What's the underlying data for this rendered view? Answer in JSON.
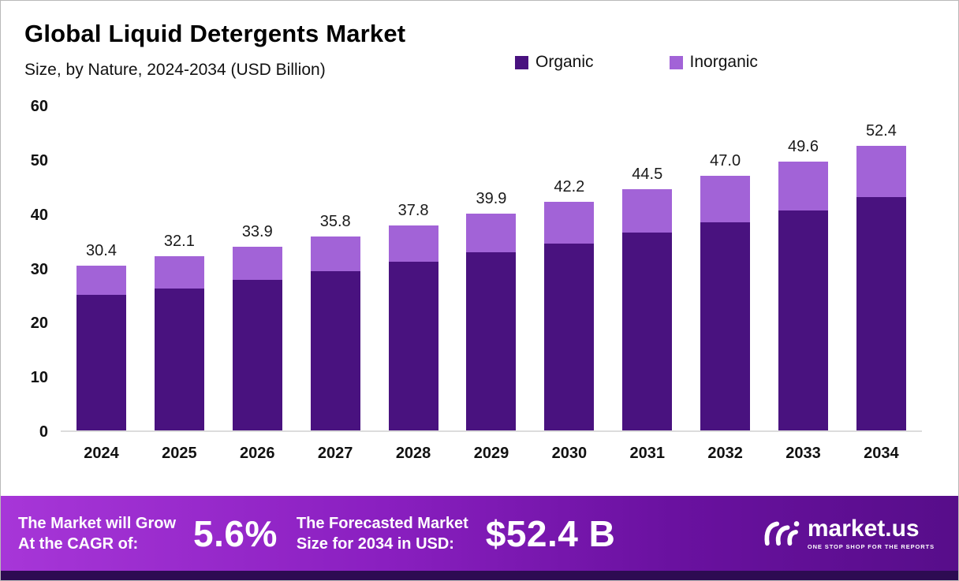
{
  "header": {
    "title": "Global Liquid Detergents Market",
    "subtitle": "Size, by Nature, 2024-2034 (USD Billion)"
  },
  "legend": [
    {
      "label": "Organic",
      "color": "#49127f"
    },
    {
      "label": "Inorganic",
      "color": "#a263d7"
    }
  ],
  "chart_data": {
    "type": "bar",
    "stacked": true,
    "title": "Global Liquid Detergents Market Size, by Nature, 2024-2034 (USD Billion)",
    "categories": [
      "2024",
      "2025",
      "2026",
      "2027",
      "2028",
      "2029",
      "2030",
      "2031",
      "2032",
      "2033",
      "2034"
    ],
    "series": [
      {
        "name": "Organic",
        "color": "#49127f",
        "values": [
          25.0,
          26.2,
          27.8,
          29.3,
          31.1,
          32.8,
          34.5,
          36.4,
          38.4,
          40.6,
          43.0
        ]
      },
      {
        "name": "Inorganic",
        "color": "#a263d7",
        "values": [
          5.4,
          5.9,
          6.1,
          6.5,
          6.7,
          7.1,
          7.7,
          8.1,
          8.6,
          9.0,
          9.4
        ]
      }
    ],
    "totals_labels": [
      "30.4",
      "32.1",
      "33.9",
      "35.8",
      "37.8",
      "39.9",
      "42.2",
      "44.5",
      "47.0",
      "49.6",
      "52.4"
    ],
    "ylim": [
      0,
      60
    ],
    "yticks": [
      0,
      10,
      20,
      30,
      40,
      50,
      60
    ],
    "grid": false,
    "legend_position": "top-right"
  },
  "banner": {
    "cagr_label_line1": "The Market will Grow",
    "cagr_label_line2": "At the CAGR of:",
    "cagr_value": "5.6%",
    "forecast_label_line1": "The Forecasted Market",
    "forecast_label_line2": "Size for 2034 in USD:",
    "forecast_value": "$52.4 B",
    "brand": "market.us",
    "brand_tagline": "ONE STOP SHOP FOR THE REPORTS"
  }
}
